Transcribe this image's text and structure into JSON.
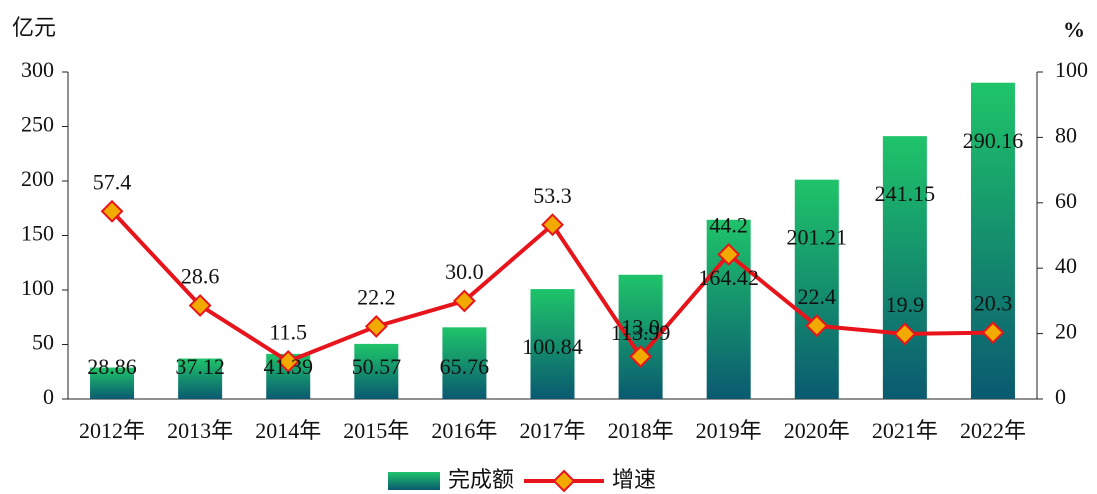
{
  "chart_data": {
    "type": "bar",
    "y_label": "亿元",
    "y2_label": "%",
    "categories": [
      "2012年",
      "2013年",
      "2014年",
      "2015年",
      "2016年",
      "2017年",
      "2018年",
      "2019年",
      "2020年",
      "2021年",
      "2022年"
    ],
    "series": [
      {
        "name": "完成额",
        "type": "bar",
        "color": "#1fc46a",
        "color2": "#0a5a70",
        "values": [
          28.86,
          37.12,
          41.39,
          50.57,
          65.76,
          100.84,
          113.99,
          164.42,
          201.21,
          241.15,
          290.16
        ]
      },
      {
        "name": "增速",
        "type": "line",
        "axis": "y2",
        "color": "#e8141c",
        "marker_color": "#f2a900",
        "values": [
          57.4,
          28.6,
          11.5,
          22.2,
          30.0,
          53.3,
          13.0,
          44.2,
          22.4,
          19.9,
          20.3
        ],
        "value_labels": [
          "57.4",
          "28.6",
          "11.5",
          "22.2",
          "30.0",
          "53.3",
          "13.0",
          "44.2",
          "22.4",
          "19.9",
          "20.3"
        ]
      }
    ],
    "ylim": [
      0,
      300
    ],
    "yticks": [
      0,
      50,
      100,
      150,
      200,
      250,
      300
    ],
    "y2lim": [
      0,
      100
    ],
    "y2ticks": [
      0,
      20,
      40,
      60,
      80,
      100
    ]
  }
}
